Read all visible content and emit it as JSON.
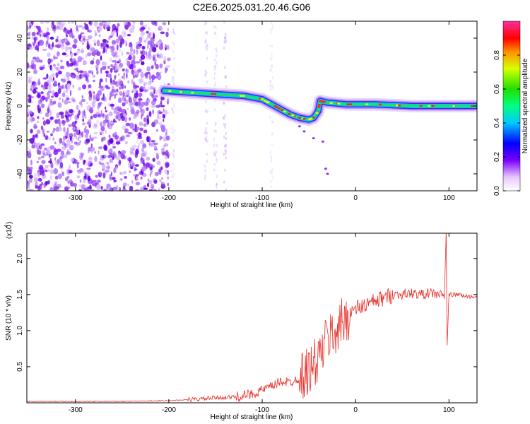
{
  "title": "C2E6.2025.031.20.46.G06",
  "chart_data": [
    {
      "type": "heatmap",
      "xlabel": "Height of straight line (km)",
      "ylabel": "Frequency (Hz)",
      "xlim": [
        -352,
        130
      ],
      "ylim": [
        -50,
        50
      ],
      "xticks": [
        -300,
        -200,
        -100,
        0,
        100
      ],
      "yticks": [
        -40,
        -20,
        0,
        20,
        40
      ],
      "colorbar": {
        "label": "Normalized spectral amplitude",
        "range": [
          0,
          1
        ],
        "ticks": [
          "0.0",
          "0.2",
          "0.4",
          "0.6",
          "0.8"
        ]
      },
      "noise_region_x": [
        -352,
        -200
      ],
      "ridge": [
        {
          "x": -205,
          "f": 9
        },
        {
          "x": -180,
          "f": 8
        },
        {
          "x": -150,
          "f": 7
        },
        {
          "x": -120,
          "f": 6
        },
        {
          "x": -100,
          "f": 4
        },
        {
          "x": -90,
          "f": 1
        },
        {
          "x": -80,
          "f": -2
        },
        {
          "x": -70,
          "f": -5
        },
        {
          "x": -60,
          "f": -7
        },
        {
          "x": -50,
          "f": -8
        },
        {
          "x": -45,
          "f": -7
        },
        {
          "x": -40,
          "f": -3
        },
        {
          "x": -38,
          "f": 3
        },
        {
          "x": -30,
          "f": 2
        },
        {
          "x": -10,
          "f": 1
        },
        {
          "x": 20,
          "f": 1
        },
        {
          "x": 60,
          "f": 0
        },
        {
          "x": 100,
          "f": 0
        },
        {
          "x": 128,
          "f": 0
        }
      ]
    },
    {
      "type": "line",
      "xlabel": "Height of straight line (km)",
      "ylabel": "SNR (10 * v/v)",
      "yscale_label": "(x10",
      "yscale_exp": "4",
      "xlim": [
        -352,
        130
      ],
      "ylim": [
        0,
        2.35
      ],
      "xticks": [
        -300,
        -200,
        -100,
        0,
        100
      ],
      "yticks": [
        "0.5",
        "1.0",
        "1.5",
        "2.0"
      ],
      "series": [
        {
          "color": "#e8302a",
          "points": [
            [
              -352,
              0.02
            ],
            [
              -250,
              0.02
            ],
            [
              -200,
              0.03
            ],
            [
              -170,
              0.05
            ],
            [
              -150,
              0.07
            ],
            [
              -130,
              0.08
            ],
            [
              -110,
              0.12
            ],
            [
              -100,
              0.18
            ],
            [
              -90,
              0.22
            ],
            [
              -80,
              0.3
            ],
            [
              -70,
              0.28
            ],
            [
              -60,
              0.35
            ],
            [
              -50,
              0.45
            ],
            [
              -40,
              0.6
            ],
            [
              -30,
              0.9
            ],
            [
              -20,
              1.0
            ],
            [
              -15,
              1.1
            ],
            [
              -5,
              1.25
            ],
            [
              0,
              1.3
            ],
            [
              10,
              1.35
            ],
            [
              20,
              1.4
            ],
            [
              30,
              1.45
            ],
            [
              40,
              1.5
            ],
            [
              50,
              1.5
            ],
            [
              60,
              1.52
            ],
            [
              70,
              1.5
            ],
            [
              80,
              1.52
            ],
            [
              90,
              1.5
            ],
            [
              95,
              1.48
            ],
            [
              97,
              2.35
            ],
            [
              98,
              0.8
            ],
            [
              100,
              1.5
            ],
            [
              110,
              1.5
            ],
            [
              120,
              1.47
            ],
            [
              130,
              1.47
            ]
          ]
        }
      ]
    }
  ]
}
